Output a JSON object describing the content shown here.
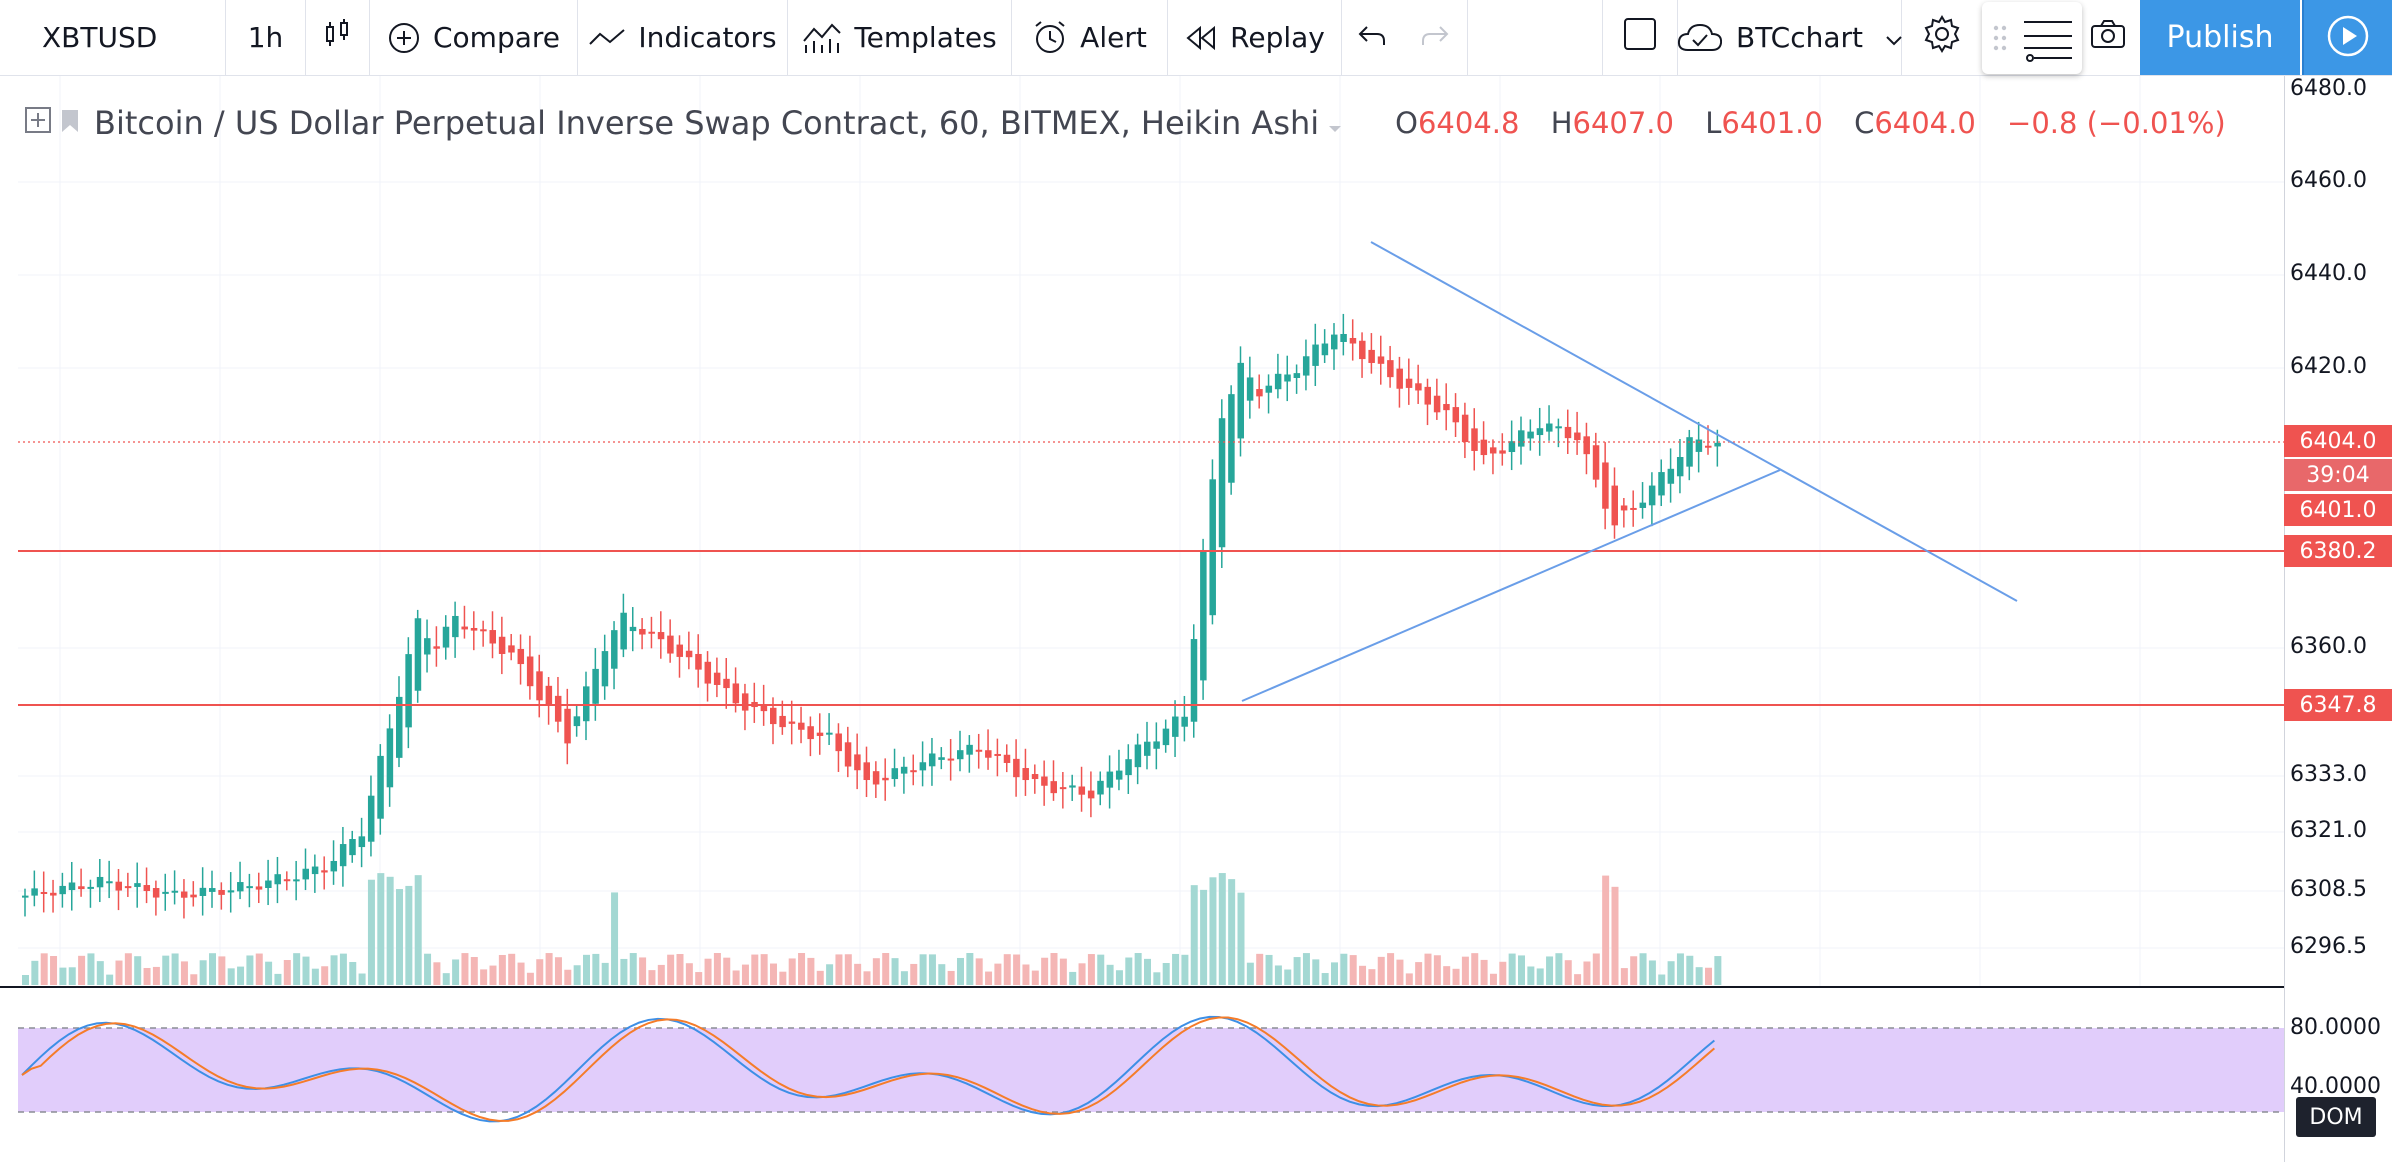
{
  "toolbar": {
    "symbol": "XBTUSD",
    "interval": "1h",
    "compare": "Compare",
    "indicators": "Indicators",
    "templates": "Templates",
    "alert": "Alert",
    "replay": "Replay",
    "layout_name": "BTCchart",
    "publish": "Publish"
  },
  "legend": {
    "title": "Bitcoin / US Dollar Perpetual Inverse Swap Contract, 60, BITMEX, Heikin Ashi",
    "o_label": "O",
    "o": "6404.8",
    "h_label": "H",
    "h": "6407.0",
    "l_label": "L",
    "l": "6401.0",
    "c_label": "C",
    "c": "6404.0",
    "change": "−0.8 (−0.01%)"
  },
  "price_axis": {
    "ticks": [
      "6480.0",
      "6460.0",
      "6440.0",
      "6420.0",
      "6360.0",
      "6333.0",
      "6321.0",
      "6308.5",
      "6296.5"
    ],
    "tags": {
      "current": "6404.0",
      "countdown": "39:04",
      "low": "6401.0",
      "level_upper": "6380.2",
      "level_lower": "6347.8"
    }
  },
  "oscillator_axis": {
    "ticks": [
      "80.0000",
      "40.0000"
    ]
  },
  "dom_button": "DOM",
  "colors": {
    "up": "#26a69a",
    "down": "#ef5350",
    "up_vol": "#a3d8d3",
    "down_vol": "#f4b6b5",
    "trend": "#6a9ee8",
    "level": "#ef5350",
    "band": "#e1cdfb",
    "k_line": "#3d8fe6",
    "d_line": "#f57c29",
    "publish": "#3c97e6"
  }
}
